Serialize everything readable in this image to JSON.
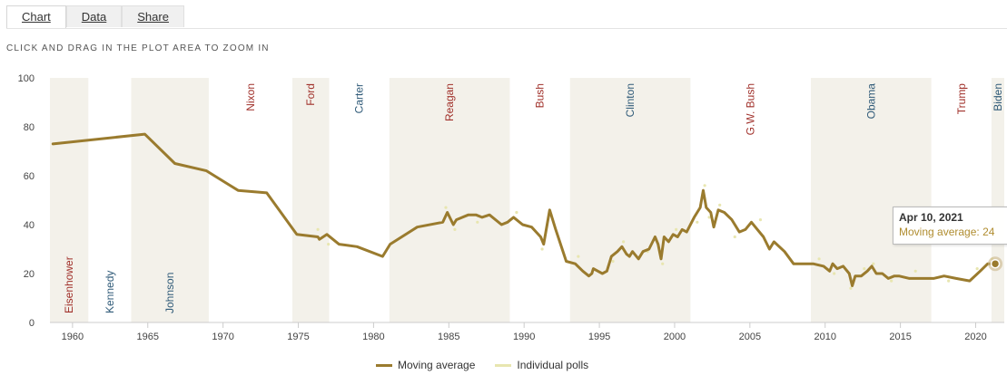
{
  "tabs": [
    {
      "label": "Chart",
      "active": true
    },
    {
      "label": "Data",
      "active": false
    },
    {
      "label": "Share",
      "active": false
    }
  ],
  "hint": "CLICK AND DRAG IN THE PLOT AREA TO ZOOM IN",
  "colors": {
    "moving_average": "#9a7b2e",
    "individual_polls": "#e8e6b0",
    "band": "#f3f1ea",
    "republican": "#a0302a",
    "democrat": "#2f5a78"
  },
  "tooltip": {
    "date": "Apr 10, 2021",
    "series_label": "Moving average",
    "value": "24"
  },
  "chart_data": {
    "type": "line",
    "x_axis": {
      "min": 1958.5,
      "max": 2021.9,
      "ticks": [
        1960,
        1965,
        1970,
        1975,
        1980,
        1985,
        1990,
        1995,
        2000,
        2005,
        2010,
        2015,
        2020
      ]
    },
    "y_axis": {
      "min": 0,
      "max": 100,
      "ticks": [
        0,
        20,
        40,
        60,
        80,
        100
      ]
    },
    "grid": false,
    "legend_position": "bottom",
    "presidents": [
      {
        "name": "Eisenhower",
        "start": 1958.5,
        "end": 1961.05,
        "party": "R",
        "label_pos": "bottom"
      },
      {
        "name": "Kennedy",
        "start": 1961.05,
        "end": 1963.9,
        "party": "D",
        "label_pos": "bottom"
      },
      {
        "name": "Johnson",
        "start": 1963.9,
        "end": 1969.05,
        "party": "D",
        "label_pos": "bottom"
      },
      {
        "name": "Nixon",
        "start": 1969.05,
        "end": 1974.6,
        "party": "R",
        "label_pos": "top"
      },
      {
        "name": "Ford",
        "start": 1974.6,
        "end": 1977.05,
        "party": "R",
        "label_pos": "top"
      },
      {
        "name": "Carter",
        "start": 1977.05,
        "end": 1981.05,
        "party": "D",
        "label_pos": "top"
      },
      {
        "name": "Reagan",
        "start": 1981.05,
        "end": 1989.05,
        "party": "R",
        "label_pos": "top"
      },
      {
        "name": "Bush",
        "start": 1989.05,
        "end": 1993.05,
        "party": "R",
        "label_pos": "top"
      },
      {
        "name": "Clinton",
        "start": 1993.05,
        "end": 2001.05,
        "party": "D",
        "label_pos": "top"
      },
      {
        "name": "G.W. Bush",
        "start": 2001.05,
        "end": 2009.05,
        "party": "R",
        "label_pos": "top"
      },
      {
        "name": "Obama",
        "start": 2009.05,
        "end": 2017.05,
        "party": "D",
        "label_pos": "top"
      },
      {
        "name": "Trump",
        "start": 2017.05,
        "end": 2021.05,
        "party": "R",
        "label_pos": "top"
      },
      {
        "name": "Biden",
        "start": 2021.05,
        "end": 2021.9,
        "party": "D",
        "label_pos": "top"
      }
    ],
    "series": [
      {
        "name": "Moving average",
        "x": [
          1958.7,
          1964.8,
          1966.8,
          1968.9,
          1971.0,
          1972.9,
          1974.9,
          1976.3,
          1976.4,
          1976.9,
          1977.7,
          1978.9,
          1980.6,
          1981.1,
          1982.9,
          1984.6,
          1984.9,
          1985.3,
          1985.5,
          1986.3,
          1986.8,
          1987.2,
          1987.7,
          1988.5,
          1988.9,
          1989.3,
          1989.9,
          1990.5,
          1990.8,
          1991.1,
          1991.3,
          1991.7,
          1992.1,
          1992.8,
          1993.4,
          1993.9,
          1994.3,
          1994.5,
          1994.6,
          1994.9,
          1995.2,
          1995.5,
          1995.8,
          1996.2,
          1996.5,
          1996.8,
          1997.0,
          1997.2,
          1997.6,
          1997.9,
          1998.3,
          1998.7,
          1998.9,
          1999.1,
          1999.3,
          1999.6,
          1999.9,
          2000.2,
          2000.5,
          2000.8,
          2001.3,
          2001.7,
          2001.9,
          2002.1,
          2002.4,
          2002.6,
          2002.9,
          2003.3,
          2003.8,
          2004.3,
          2004.7,
          2005.1,
          2005.5,
          2005.9,
          2006.3,
          2006.6,
          2007.3,
          2007.9,
          2008.6,
          2009.2,
          2009.9,
          2010.3,
          2010.5,
          2010.8,
          2011.2,
          2011.6,
          2011.8,
          2012.0,
          2012.4,
          2012.8,
          2013.1,
          2013.4,
          2013.8,
          2014.2,
          2014.6,
          2014.9,
          2015.6,
          2016.2,
          2017.2,
          2017.9,
          2018.7,
          2019.6,
          2020.3,
          2020.8,
          2021.3
        ],
        "y": [
          73,
          77,
          65,
          62,
          54,
          53,
          36,
          35,
          34,
          36,
          32,
          31,
          27,
          32,
          39,
          41,
          45,
          40,
          42,
          44,
          44,
          43,
          44,
          40,
          41,
          43,
          40,
          39,
          37,
          35,
          32,
          46,
          38,
          25,
          24,
          21,
          19,
          20,
          22,
          21,
          20,
          21,
          27,
          29,
          31,
          28,
          27,
          29,
          26,
          29,
          30,
          35,
          32,
          26,
          35,
          33,
          36,
          35,
          38,
          37,
          43,
          47,
          54,
          47,
          45,
          39,
          46,
          45,
          42,
          37,
          38,
          41,
          38,
          35,
          30,
          33,
          29,
          24,
          24,
          24,
          23,
          21,
          24,
          22,
          23,
          20,
          15,
          19,
          19,
          21,
          23,
          20,
          20,
          18,
          19,
          19,
          18,
          18,
          18,
          19,
          18,
          17,
          21,
          24,
          24
        ]
      },
      {
        "name": "Individual polls",
        "x": [
          1976.3,
          1977.0,
          1984.8,
          1985.4,
          1986.9,
          1989.5,
          1991.2,
          1991.8,
          1993.6,
          1995.9,
          1996.6,
          1998.2,
          1999.2,
          2000.1,
          2001.5,
          2002.0,
          2002.3,
          2003.0,
          2004.0,
          2005.7,
          2009.6,
          2010.6,
          2011.7,
          2012.6,
          2013.2,
          2014.4,
          2016.0,
          2018.2,
          2020.1,
          2021.1
        ],
        "y": [
          38,
          32,
          47,
          38,
          41,
          45,
          30,
          44,
          27,
          25,
          33,
          29,
          24,
          38,
          41,
          56,
          43,
          48,
          35,
          42,
          26,
          20,
          14,
          22,
          24,
          17,
          21,
          17,
          22,
          26
        ]
      }
    ],
    "data_labels": []
  },
  "legend": [
    {
      "label": "Moving average"
    },
    {
      "label": "Individual polls"
    }
  ]
}
